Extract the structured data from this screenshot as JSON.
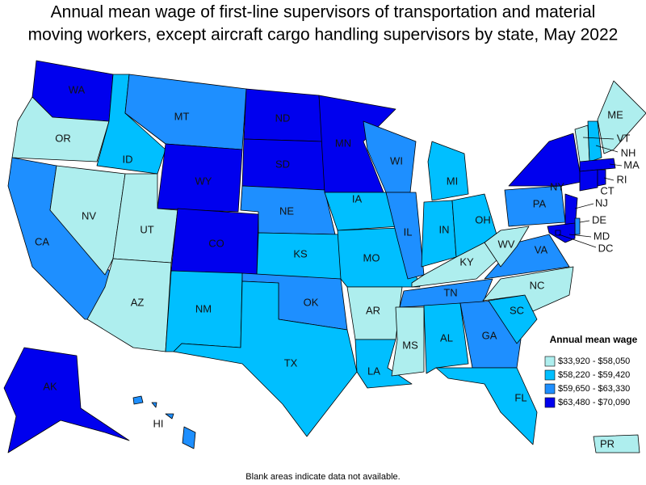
{
  "header": {
    "title_line1": "Annual mean wage of first-line supervisors of transportation and material",
    "title_line2": "moving workers, except aircraft cargo handling supervisors by state, May 2022"
  },
  "legend": {
    "title": "Annual mean wage",
    "classes": [
      {
        "label": "$33,920 - $58,050",
        "color": "#aeeeee"
      },
      {
        "label": "$58,220 - $59,420",
        "color": "#00bfff"
      },
      {
        "label": "$59,650 - $63,330",
        "color": "#1e8fff"
      },
      {
        "label": "$63,480 - $70,090",
        "color": "#0000ee"
      }
    ]
  },
  "states": [
    {
      "abbr": "WA",
      "class": 3
    },
    {
      "abbr": "OR",
      "class": 0
    },
    {
      "abbr": "CA",
      "class": 2
    },
    {
      "abbr": "NV",
      "class": 0
    },
    {
      "abbr": "ID",
      "class": 1
    },
    {
      "abbr": "MT",
      "class": 2
    },
    {
      "abbr": "WY",
      "class": 3
    },
    {
      "abbr": "UT",
      "class": 0
    },
    {
      "abbr": "AZ",
      "class": 0
    },
    {
      "abbr": "CO",
      "class": 3
    },
    {
      "abbr": "NM",
      "class": 1
    },
    {
      "abbr": "ND",
      "class": 3
    },
    {
      "abbr": "SD",
      "class": 3
    },
    {
      "abbr": "NE",
      "class": 2
    },
    {
      "abbr": "KS",
      "class": 1
    },
    {
      "abbr": "OK",
      "class": 2
    },
    {
      "abbr": "TX",
      "class": 1
    },
    {
      "abbr": "MN",
      "class": 3
    },
    {
      "abbr": "IA",
      "class": 1
    },
    {
      "abbr": "MO",
      "class": 1
    },
    {
      "abbr": "AR",
      "class": 0
    },
    {
      "abbr": "LA",
      "class": 1
    },
    {
      "abbr": "WI",
      "class": 2
    },
    {
      "abbr": "IL",
      "class": 2
    },
    {
      "abbr": "MI",
      "class": 1
    },
    {
      "abbr": "IN",
      "class": 1
    },
    {
      "abbr": "OH",
      "class": 1
    },
    {
      "abbr": "KY",
      "class": 0
    },
    {
      "abbr": "TN",
      "class": 2
    },
    {
      "abbr": "MS",
      "class": 0
    },
    {
      "abbr": "AL",
      "class": 1
    },
    {
      "abbr": "GA",
      "class": 2
    },
    {
      "abbr": "FL",
      "class": 1
    },
    {
      "abbr": "SC",
      "class": 1
    },
    {
      "abbr": "NC",
      "class": 0
    },
    {
      "abbr": "VA",
      "class": 2
    },
    {
      "abbr": "WV",
      "class": 0
    },
    {
      "abbr": "PA",
      "class": 2
    },
    {
      "abbr": "NY",
      "class": 3
    },
    {
      "abbr": "NJ",
      "class": 3
    },
    {
      "abbr": "DE",
      "class": 2
    },
    {
      "abbr": "MD",
      "class": 3
    },
    {
      "abbr": "DC",
      "class": 3
    },
    {
      "abbr": "VT",
      "class": 0
    },
    {
      "abbr": "NH",
      "class": 1
    },
    {
      "abbr": "ME",
      "class": 0
    },
    {
      "abbr": "MA",
      "class": 3
    },
    {
      "abbr": "CT",
      "class": 3
    },
    {
      "abbr": "RI",
      "class": 3
    },
    {
      "abbr": "AK",
      "class": 3
    },
    {
      "abbr": "HI",
      "class": 2
    },
    {
      "abbr": "PR",
      "class": 0
    }
  ],
  "footnote": "Blank areas indicate data not available."
}
